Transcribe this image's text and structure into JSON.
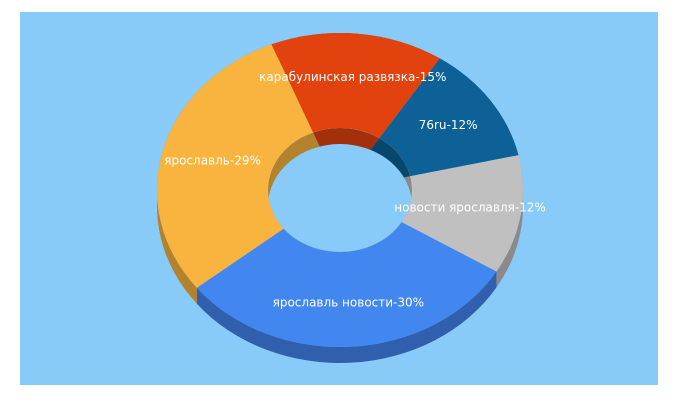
{
  "chart_data": {
    "type": "pie",
    "style": "3d-donut",
    "categories": [
      "карабулинская развязка-15%",
      "76ru-12%",
      "новости ярославля-12%",
      "ярославль новости-30%",
      "ярославль-29%"
    ],
    "values": [
      15,
      12,
      12,
      30,
      29
    ],
    "colors": [
      "#e2430e",
      "#0d6196",
      "#c0c0c0",
      "#4286f0",
      "#f9b43f"
    ],
    "background": "#88cbf9"
  }
}
